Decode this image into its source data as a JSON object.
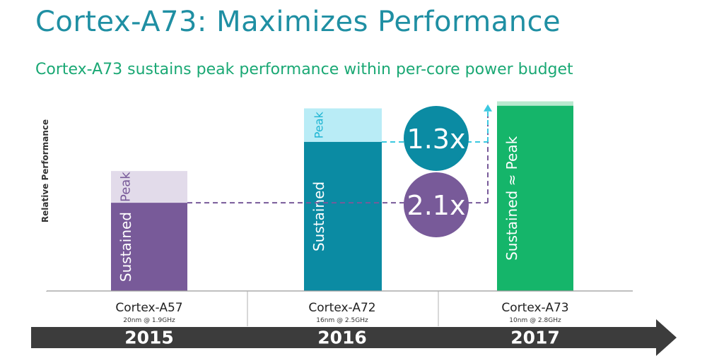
{
  "header": {
    "title": "Cortex-A73:  Maximizes Performance",
    "subtitle": "Cortex-A73 sustains peak performance within per-core power budget"
  },
  "chart_data": {
    "type": "bar",
    "ylabel": "Relative Performance",
    "categories": [
      "Cortex-A57",
      "Cortex-A72",
      "Cortex-A73"
    ],
    "sublabels": [
      "20nm @ 1.9GHz",
      "16nm @ 2.5GHz",
      "10nm @ 2.8GHz"
    ],
    "years": [
      "2015",
      "2016",
      "2017"
    ],
    "series": [
      {
        "name": "Sustained",
        "values": [
          1.0,
          1.69,
          2.1
        ]
      },
      {
        "name": "Peak",
        "values": [
          1.36,
          2.07,
          2.15
        ]
      }
    ],
    "bar_labels": [
      "Sustained",
      "Peak",
      "Sustained",
      "Peak",
      "Sustained ≈ Peak"
    ],
    "annotations": [
      "1.3x",
      "2.1x"
    ],
    "ylim": [
      0,
      2.25
    ],
    "colors": {
      "a57_sustained": "#785a99",
      "a57_peak": "#e2dbea",
      "a72_sustained": "#0b8ba3",
      "a72_peak": "#b9ecf6",
      "a73_sustained": "#15b56a",
      "a73_peak": "#b9e9cf",
      "bubble_13": "#0b8ba3",
      "bubble_21": "#785a99",
      "timeline": "#3c3c3c",
      "dash_purple": "#785a99",
      "dash_teal": "#3bc8e0"
    }
  }
}
